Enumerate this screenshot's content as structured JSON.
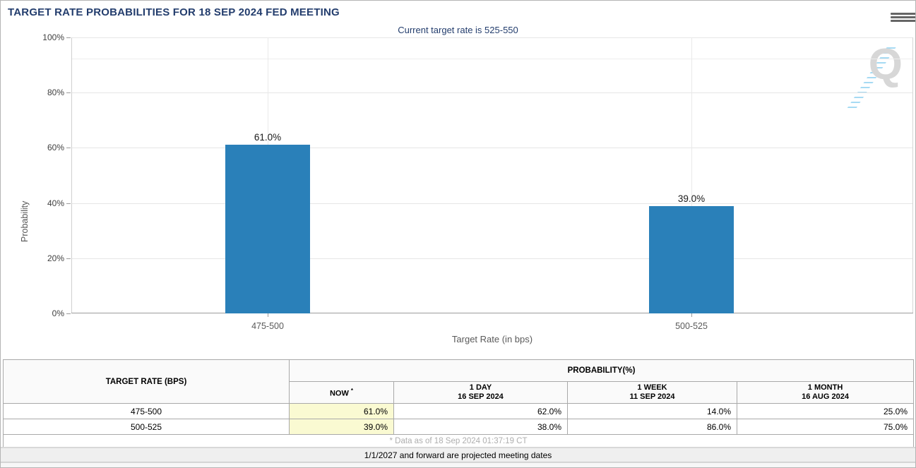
{
  "header": {
    "title": "TARGET RATE PROBABILITIES FOR 18 SEP 2024 FED MEETING",
    "subtitle": "Current target rate is 525-550"
  },
  "chart_data": {
    "type": "bar",
    "title": "TARGET RATE PROBABILITIES FOR 18 SEP 2024 FED MEETING",
    "subtitle": "Current target rate is 525-550",
    "categories": [
      "475-500",
      "500-525"
    ],
    "values": [
      61.0,
      39.0
    ],
    "value_labels": [
      "61.0%",
      "39.0%"
    ],
    "xlabel": "Target Rate (in bps)",
    "ylabel": "Probability",
    "ylim": [
      0,
      100
    ],
    "ytick_labels": [
      "100%",
      "80%",
      "60%",
      "40%",
      "20%",
      "0%"
    ],
    "grid": "horizontal gridlines every 20%, vertical gridline at each category",
    "legend": "none",
    "bar_color": "#2a80b9",
    "watermark_letter": "Q"
  },
  "table": {
    "rate_header": "TARGET RATE (BPS)",
    "prob_header": "PROBABILITY(%)",
    "cols": [
      {
        "label": "NOW",
        "sup": "*",
        "sub": ""
      },
      {
        "label": "1 DAY",
        "sub": "16 SEP 2024"
      },
      {
        "label": "1 WEEK",
        "sub": "11 SEP 2024"
      },
      {
        "label": "1 MONTH",
        "sub": "16 AUG 2024"
      }
    ],
    "rows": [
      {
        "rate": "475-500",
        "now": "61.0%",
        "one_day": "62.0%",
        "one_week": "14.0%",
        "one_month": "25.0%"
      },
      {
        "rate": "500-525",
        "now": "39.0%",
        "one_day": "38.0%",
        "one_week": "86.0%",
        "one_month": "75.0%"
      }
    ],
    "footnote": "* Data as of 18 Sep 2024 01:37:19 CT"
  },
  "footer": {
    "note": "1/1/2027 and forward are projected meeting dates"
  },
  "colors": {
    "accent_navy": "#233d6d",
    "bar_blue": "#2a80b9",
    "now_highlight": "#fafad2",
    "watermark_gray": "#d7d7d7",
    "watermark_blue": "#a6daf3"
  }
}
